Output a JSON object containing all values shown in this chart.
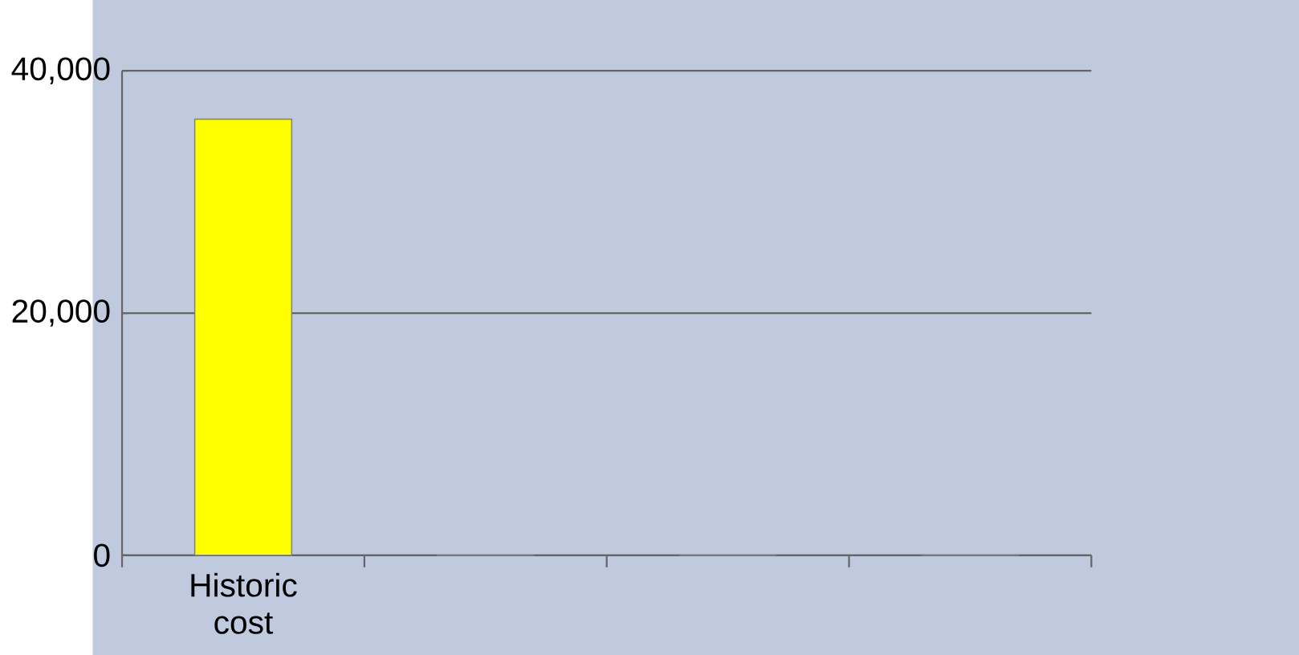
{
  "chart_data": {
    "type": "bar",
    "categories": [
      "Historic cost",
      null,
      null,
      null
    ],
    "values": [
      36000,
      0,
      0,
      0
    ],
    "colors": [
      "#ffff00",
      "#c8c8a0",
      "#6e9e40",
      "#6e9e40"
    ],
    "ylim": [
      0,
      40000
    ],
    "yticks": [
      {
        "value": 0,
        "label": "0"
      },
      {
        "value": 20000,
        "label": "20,000"
      },
      {
        "value": 40000,
        "label": "40,000"
      }
    ],
    "grid": "y"
  }
}
